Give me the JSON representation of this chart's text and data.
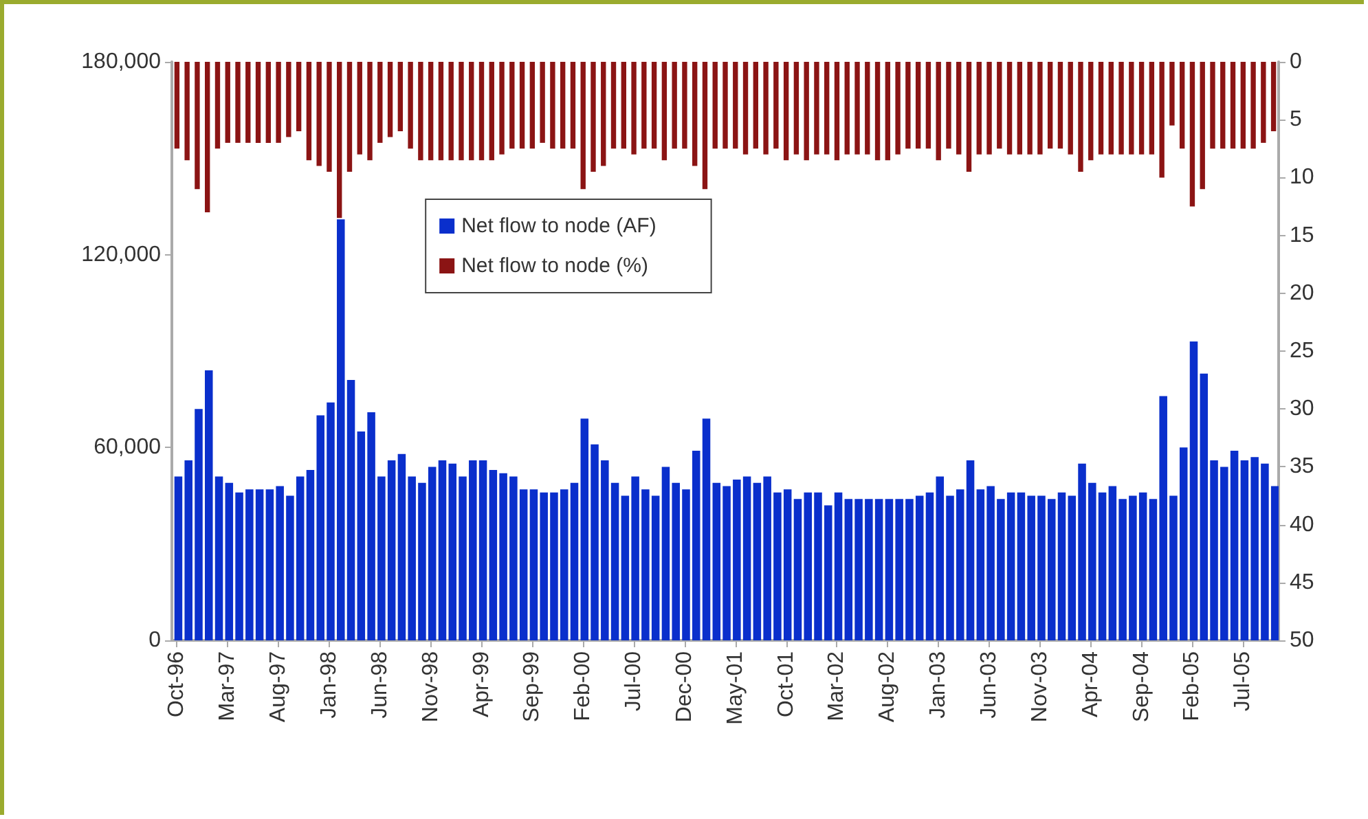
{
  "chart_data": {
    "type": "bar",
    "categories": [
      "Oct-96",
      null,
      null,
      null,
      null,
      "Mar-97",
      null,
      null,
      null,
      null,
      "Aug-97",
      null,
      null,
      null,
      null,
      "Jan-98",
      null,
      null,
      null,
      null,
      "Jun-98",
      null,
      null,
      null,
      null,
      "Nov-98",
      null,
      null,
      null,
      null,
      "Apr-99",
      null,
      null,
      null,
      null,
      "Sep-99",
      null,
      null,
      null,
      null,
      "Feb-00",
      null,
      null,
      null,
      null,
      "Jul-00",
      null,
      null,
      null,
      null,
      "Dec-00",
      null,
      null,
      null,
      null,
      "May-01",
      null,
      null,
      null,
      null,
      "Oct-01",
      null,
      null,
      null,
      null,
      "Mar-02",
      null,
      null,
      null,
      null,
      "Aug-02",
      null,
      null,
      null,
      null,
      "Jan-03",
      null,
      null,
      null,
      null,
      "Jun-03",
      null,
      null,
      null,
      null,
      "Nov-03",
      null,
      null,
      null,
      null,
      "Apr-04",
      null,
      null,
      null,
      null,
      "Sep-04",
      null,
      null,
      null,
      null,
      "Feb-05",
      null,
      null,
      null,
      null,
      "Jul-05",
      null,
      null,
      null
    ],
    "series": [
      {
        "name": "Net flow to node (AF)",
        "color": "#0a2fcc",
        "values": [
          51000,
          56000,
          72000,
          84000,
          51000,
          49000,
          46000,
          47000,
          47000,
          47000,
          48000,
          45000,
          51000,
          53000,
          70000,
          74000,
          131000,
          81000,
          65000,
          71000,
          51000,
          56000,
          58000,
          51000,
          49000,
          54000,
          56000,
          55000,
          51000,
          56000,
          56000,
          53000,
          52000,
          51000,
          47000,
          47000,
          46000,
          46000,
          47000,
          49000,
          69000,
          61000,
          56000,
          49000,
          45000,
          51000,
          47000,
          45000,
          54000,
          49000,
          47000,
          59000,
          69000,
          49000,
          48000,
          50000,
          51000,
          49000,
          51000,
          46000,
          47000,
          44000,
          46000,
          46000,
          42000,
          46000,
          44000,
          44000,
          44000,
          44000,
          44000,
          44000,
          44000,
          45000,
          46000,
          51000,
          45000,
          47000,
          56000,
          47000,
          48000,
          44000,
          46000,
          46000,
          45000,
          45000,
          44000,
          46000,
          45000,
          55000,
          49000,
          46000,
          48000,
          44000,
          45000,
          46000,
          44000,
          76000,
          45000,
          60000,
          93000,
          83000,
          56000,
          54000,
          59000,
          56000,
          57000,
          55000,
          48000
        ]
      },
      {
        "name": "Net flow to node (%)",
        "color": "#8b1414",
        "axis": "y2",
        "values": [
          7.5,
          8.5,
          11,
          13,
          7.5,
          7,
          7,
          7,
          7,
          7,
          7,
          6.5,
          6,
          8.5,
          9,
          9.5,
          13.5,
          9.5,
          8,
          8.5,
          7,
          6.5,
          6,
          7.5,
          8.5,
          8.5,
          8.5,
          8.5,
          8.5,
          8.5,
          8.5,
          8.5,
          8,
          7.5,
          7.5,
          7.5,
          7,
          7.5,
          7.5,
          7.5,
          11,
          9.5,
          9,
          7.5,
          7.5,
          8,
          7.5,
          7.5,
          8.5,
          7.5,
          7.5,
          9,
          11,
          7.5,
          7.5,
          7.5,
          8,
          7.5,
          8,
          7.5,
          8.5,
          8,
          8.5,
          8,
          8,
          8.5,
          8,
          8,
          8,
          8.5,
          8.5,
          8,
          7.5,
          7.5,
          7.5,
          8.5,
          7.5,
          8,
          9.5,
          8,
          8,
          7.5,
          8,
          8,
          8,
          8,
          7.5,
          7.5,
          8,
          9.5,
          8.5,
          8,
          8,
          8,
          8,
          8,
          8,
          10,
          5.5,
          7.5,
          12.5,
          11,
          7.5,
          7.5,
          7.5,
          7.5,
          7.5,
          7,
          6
        ]
      }
    ],
    "ylim": [
      0,
      180000
    ],
    "yticks": [
      0,
      {
        "value": 60000,
        "label": "60,000"
      },
      {
        "value": 120000,
        "label": "120,000"
      },
      {
        "value": 180000,
        "label": "180,000"
      }
    ],
    "y2lim": [
      50,
      0
    ],
    "y2ticks": [
      0,
      5,
      10,
      15,
      20,
      25,
      30,
      35,
      40,
      45,
      50
    ],
    "legend": "top",
    "grid": false
  }
}
